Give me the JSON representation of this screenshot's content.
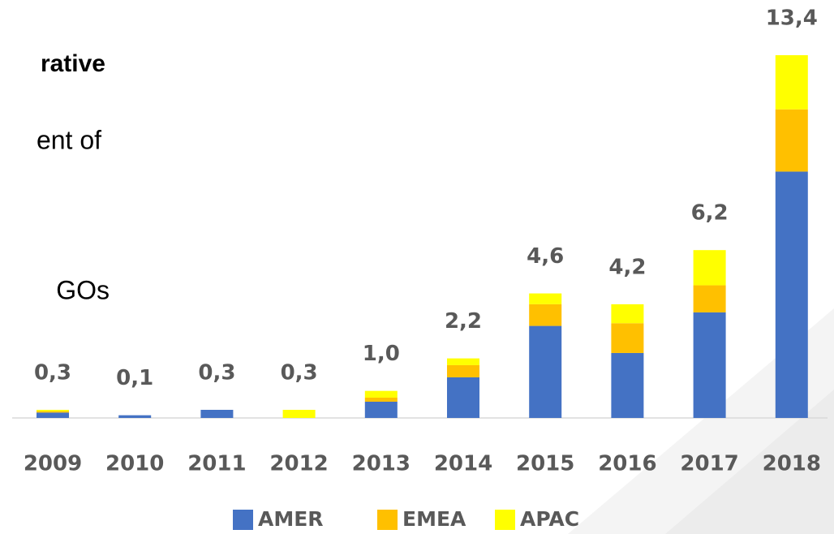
{
  "slide": {
    "lines": [
      "rative",
      "ent of",
      "GOs"
    ]
  },
  "chart_data": {
    "type": "stacked_bar",
    "categories": [
      "2009",
      "2010",
      "2011",
      "2012",
      "2013",
      "2014",
      "2015",
      "2016",
      "2017",
      "2018"
    ],
    "series": [
      {
        "name": "AMER",
        "color": "#4472c4",
        "values": [
          0.2,
          0.1,
          0.3,
          0,
          0.6,
          1.5,
          3.4,
          2.4,
          3.9,
          9.1
        ]
      },
      {
        "name": "EMEA",
        "color": "#ffc000",
        "values": [
          0.05,
          0,
          0,
          0,
          0.15,
          0.45,
          0.8,
          1.1,
          1.0,
          2.3
        ]
      },
      {
        "name": "APAC",
        "color": "#ffff00",
        "values": [
          0.05,
          0,
          0,
          0.3,
          0.25,
          0.25,
          0.4,
          0.7,
          1.3,
          2.0
        ]
      }
    ],
    "totals": [
      0.3,
      0.1,
      0.3,
      0.3,
      1.0,
      2.2,
      4.6,
      4.2,
      6.2,
      13.4
    ],
    "total_labels": [
      "0,3",
      "0,1",
      "0,3",
      "0,3",
      "1,0",
      "2,2",
      "4,6",
      "4,2",
      "6,2",
      "13,4"
    ],
    "ylim": [
      0,
      14
    ]
  }
}
